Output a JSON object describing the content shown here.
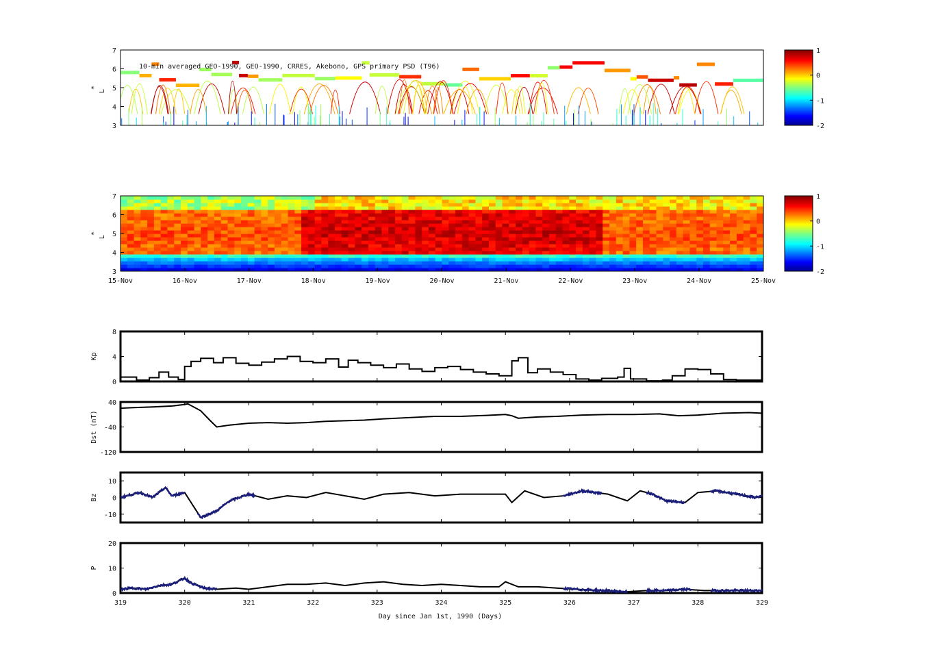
{
  "chart_data": [
    {
      "type": "heatmap",
      "panel": "observed_psd",
      "annotation": "10-min averaged GEO-1990, GEO-1990, CRRES, Akebono, GPS  primary PSD (T96)",
      "ylabel": "L",
      "ylabel_superscript": "*",
      "ylim": [
        3,
        7
      ],
      "yticks": [
        "3",
        "4",
        "5",
        "6",
        "7"
      ],
      "colorbar": {
        "ticks": [
          "1",
          "0",
          "-1",
          "-2"
        ],
        "range": [
          -2,
          1
        ],
        "colormap": "jet"
      }
    },
    {
      "type": "heatmap",
      "panel": "assimilated_psd",
      "ylabel": "L",
      "ylabel_superscript": "*",
      "ylim": [
        3,
        7
      ],
      "yticks": [
        "3",
        "4",
        "5",
        "6",
        "7"
      ],
      "xticks": [
        "15-Nov",
        "16-Nov",
        "17-Nov",
        "18-Nov",
        "19-Nov",
        "20-Nov",
        "21-Nov",
        "22-Nov",
        "23-Nov",
        "24-Nov",
        "25-Nov"
      ],
      "colorbar": {
        "ticks": [
          "1",
          "0",
          "-1",
          "-2"
        ],
        "range": [
          -2,
          1
        ],
        "colormap": "jet"
      }
    },
    {
      "type": "line",
      "panel": "kp",
      "ylabel": "Kp",
      "ylim": [
        0,
        8
      ],
      "yticks": [
        "0",
        "4",
        "8"
      ],
      "xlim": [
        319,
        329
      ],
      "x": [
        319.0,
        319.25,
        319.45,
        319.6,
        319.75,
        319.9,
        320.0,
        320.1,
        320.25,
        320.45,
        320.6,
        320.8,
        321.0,
        321.2,
        321.4,
        321.6,
        321.8,
        322.0,
        322.2,
        322.4,
        322.55,
        322.7,
        322.9,
        323.1,
        323.3,
        323.5,
        323.7,
        323.9,
        324.1,
        324.3,
        324.5,
        324.7,
        324.9,
        325.1,
        325.2,
        325.35,
        325.5,
        325.7,
        325.9,
        326.1,
        326.3,
        326.5,
        326.75,
        326.85,
        326.95,
        327.2,
        327.45,
        327.6,
        327.8,
        328.0,
        328.2,
        328.4,
        328.6,
        328.8,
        329.0
      ],
      "values": [
        0.7,
        0.2,
        0.6,
        1.5,
        0.7,
        0.3,
        2.4,
        3.2,
        3.7,
        3.0,
        3.8,
        2.9,
        2.6,
        3.1,
        3.6,
        4.0,
        3.2,
        3.0,
        3.6,
        2.3,
        3.4,
        3.0,
        2.6,
        2.2,
        2.8,
        2.0,
        1.6,
        2.2,
        2.4,
        1.9,
        1.5,
        1.2,
        0.9,
        3.3,
        3.8,
        1.4,
        2.0,
        1.5,
        1.1,
        0.4,
        0.2,
        0.5,
        0.7,
        2.1,
        0.4,
        0.1,
        0.2,
        0.9,
        2.0,
        1.9,
        1.2,
        0.3,
        0.2,
        0.2,
        0.6
      ]
    },
    {
      "type": "line",
      "panel": "dst",
      "ylabel": "Dst (nT)",
      "ylim": [
        -120,
        40
      ],
      "yticks": [
        "-120",
        "-40",
        "40"
      ],
      "xlim": [
        319,
        329
      ],
      "x": [
        319.0,
        319.2,
        319.5,
        319.8,
        320.0,
        320.05,
        320.25,
        320.4,
        320.5,
        320.7,
        321.0,
        321.3,
        321.6,
        321.9,
        322.2,
        322.5,
        322.8,
        323.1,
        323.5,
        323.9,
        324.3,
        324.7,
        325.0,
        325.1,
        325.2,
        325.5,
        325.8,
        326.2,
        326.6,
        327.0,
        327.4,
        327.7,
        328.0,
        328.4,
        328.8,
        329.0
      ],
      "values": [
        20,
        22,
        24,
        27,
        32,
        34,
        12,
        -20,
        -40,
        -34,
        -28,
        -26,
        -28,
        -26,
        -22,
        -20,
        -18,
        -14,
        -10,
        -6,
        -6,
        -3,
        0,
        -4,
        -12,
        -8,
        -6,
        -2,
        0,
        0,
        2,
        -4,
        -2,
        4,
        6,
        4
      ]
    },
    {
      "type": "line",
      "panel": "bz",
      "ylabel": "Bz",
      "ylim": [
        -15,
        15
      ],
      "yticks": [
        "-10",
        "0",
        "10"
      ],
      "xlim": [
        319,
        329
      ],
      "x": [
        319.0,
        319.3,
        319.5,
        319.7,
        319.8,
        320.0,
        320.1,
        320.25,
        320.5,
        320.7,
        321.0,
        321.3,
        321.6,
        321.9,
        322.2,
        322.5,
        322.8,
        323.1,
        323.5,
        323.9,
        324.3,
        324.7,
        325.0,
        325.1,
        325.3,
        325.6,
        325.9,
        326.2,
        326.6,
        326.9,
        327.1,
        327.3,
        327.5,
        327.8,
        328.0,
        328.3,
        328.6,
        328.9,
        329.0
      ],
      "values": [
        0,
        3,
        0,
        6,
        1,
        3,
        -3,
        -12,
        -8,
        -2,
        2,
        -1,
        1,
        0,
        3,
        1,
        -1,
        2,
        3,
        1,
        2,
        2,
        2,
        -3,
        4,
        0,
        1,
        4,
        2,
        -2,
        4,
        2,
        -2,
        -3,
        3,
        4,
        2,
        0,
        1
      ],
      "highlight_segments": [
        [
          319.0,
          320.0
        ],
        [
          320.2,
          321.1
        ],
        [
          325.9,
          326.5
        ],
        [
          327.2,
          327.8
        ],
        [
          328.2,
          329.0
        ]
      ],
      "colors": {
        "primary": "#000000",
        "highlight": "#1b1f7a"
      }
    },
    {
      "type": "line",
      "panel": "pressure",
      "ylabel": "P",
      "ylim": [
        0,
        20
      ],
      "yticks": [
        "0",
        "10",
        "20"
      ],
      "xlim": [
        319,
        329
      ],
      "xticks": [
        "319",
        "320",
        "321",
        "322",
        "323",
        "324",
        "325",
        "326",
        "327",
        "328",
        "329"
      ],
      "xlabel": "Day since Jan 1st, 1990 (Days)",
      "x": [
        319.0,
        319.2,
        319.4,
        319.6,
        319.8,
        320.0,
        320.1,
        320.3,
        320.5,
        320.8,
        321.0,
        321.3,
        321.6,
        321.9,
        322.2,
        322.5,
        322.8,
        323.1,
        323.4,
        323.7,
        324.0,
        324.3,
        324.6,
        324.9,
        325.0,
        325.2,
        325.5,
        325.8,
        326.1,
        326.5,
        326.9,
        327.2,
        327.5,
        327.8,
        328.1,
        328.5,
        329.0
      ],
      "values": [
        1.5,
        2.0,
        1.5,
        3.0,
        3.5,
        6.0,
        4.0,
        2.0,
        1.5,
        2.0,
        1.5,
        2.5,
        3.5,
        3.5,
        4.0,
        3.0,
        4.0,
        4.5,
        3.5,
        3.0,
        3.5,
        3.0,
        2.5,
        2.5,
        4.5,
        2.5,
        2.5,
        2.0,
        1.5,
        1.0,
        0.5,
        1.0,
        1.0,
        1.5,
        1.0,
        1.0,
        1.0
      ],
      "highlight_segments": [
        [
          319.0,
          320.5
        ],
        [
          325.9,
          326.9
        ],
        [
          327.2,
          327.9
        ],
        [
          328.2,
          329.0
        ]
      ],
      "colors": {
        "primary": "#000000",
        "highlight": "#1b1f7a"
      }
    }
  ]
}
